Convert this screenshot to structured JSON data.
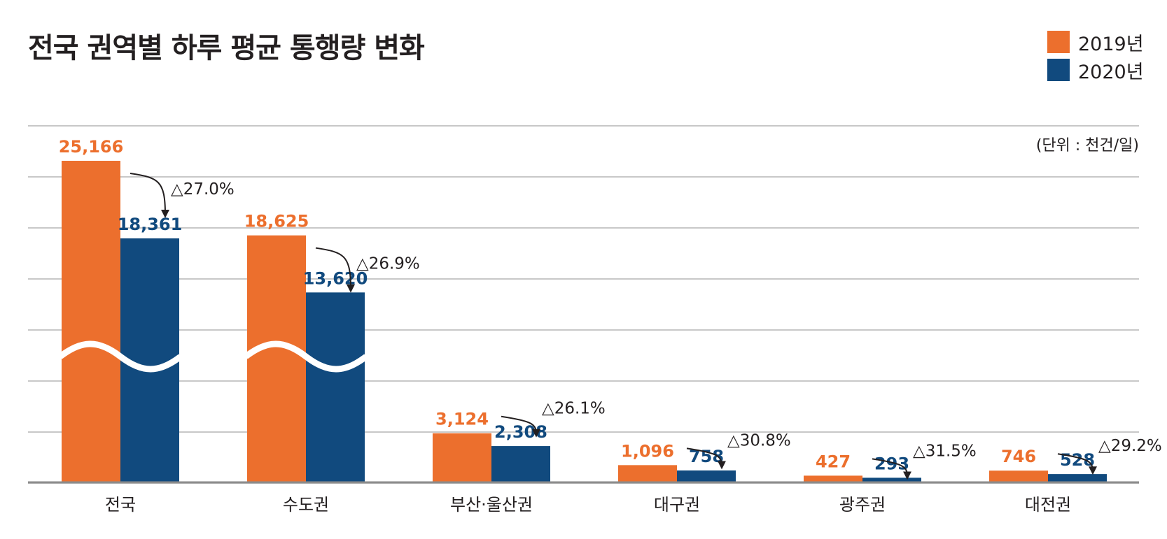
{
  "title": "전국 권역별 하루 평균 통행량 변화",
  "unit": "(단위 : 천건/일)",
  "colors": {
    "y2019": "#ec6f2d",
    "y2020": "#114a7e",
    "grid": "#c8c8c8",
    "axis": "#8c8c8c"
  },
  "legend": [
    {
      "label": "2019년",
      "color": "#ec6f2d"
    },
    {
      "label": "2020년",
      "color": "#114a7e"
    }
  ],
  "chart_data": {
    "type": "bar",
    "categories": [
      "전국",
      "수도권",
      "부산·울산권",
      "대구권",
      "광주권",
      "대전권"
    ],
    "series": [
      {
        "name": "2019년",
        "values": [
          25166,
          18625,
          3124,
          1096,
          427,
          746
        ],
        "labels": [
          "25,166",
          "18,625",
          "3,124",
          "1,096",
          "427",
          "746"
        ]
      },
      {
        "name": "2020년",
        "values": [
          18361,
          13620,
          2308,
          758,
          293,
          528
        ],
        "labels": [
          "18,361",
          "13,620",
          "2,308",
          "758",
          "293",
          "528"
        ]
      }
    ],
    "changes": [
      "△27.0%",
      "△26.9%",
      "△26.1%",
      "△30.8%",
      "△31.5%",
      "△29.2%"
    ],
    "axis_break": true,
    "grid": true,
    "legend_position": "top-right"
  }
}
